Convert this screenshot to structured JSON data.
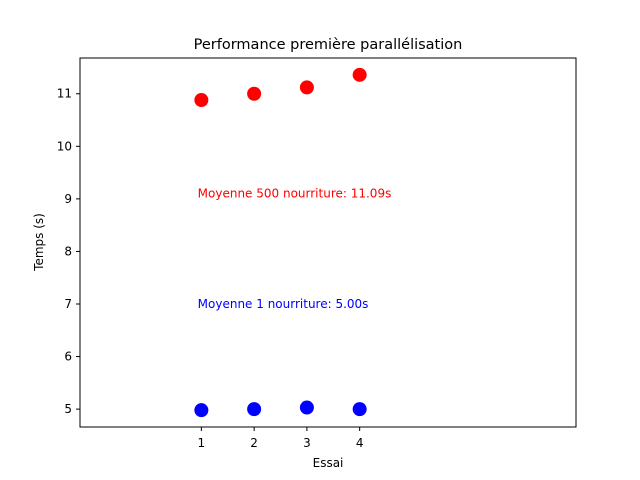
{
  "chart_data": {
    "type": "scatter",
    "title": "Performance première parallélisation",
    "xlabel": "Essai",
    "ylabel": "Temps (s)",
    "xlim": [
      -1.3,
      8.1
    ],
    "ylim": [
      4.66,
      11.68
    ],
    "xticks": [
      1,
      2,
      3,
      4
    ],
    "yticks": [
      5,
      6,
      7,
      8,
      9,
      10,
      11
    ],
    "grid": false,
    "series": [
      {
        "color": "#ff0000",
        "x": [
          1,
          2,
          3,
          4
        ],
        "y": [
          10.88,
          11.0,
          11.12,
          11.36
        ]
      },
      {
        "color": "#0000ff",
        "x": [
          1,
          2,
          3,
          4
        ],
        "y": [
          4.98,
          5.0,
          5.03,
          5.0
        ]
      }
    ],
    "annotations": [
      {
        "text": "Moyenne 500 nourriture: 11.09s",
        "x": 0.93,
        "y": 9.1,
        "color": "#ff0000"
      },
      {
        "text": "Moyenne 1 nourriture: 5.00s",
        "x": 0.93,
        "y": 7.0,
        "color": "#0000ff"
      }
    ]
  }
}
